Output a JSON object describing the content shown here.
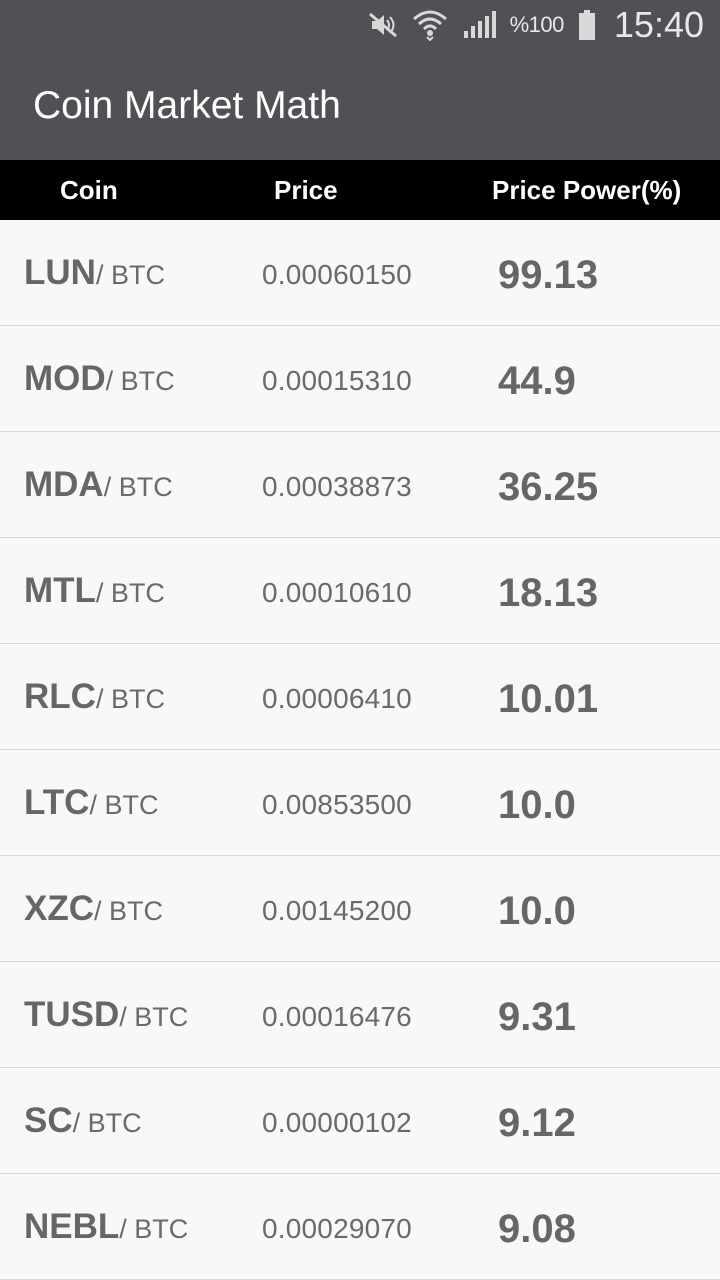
{
  "status_bar": {
    "battery_text": "%100",
    "time": "15:40",
    "icons": [
      "mute-icon",
      "wifi-icon",
      "signal-icon",
      "battery-icon"
    ]
  },
  "app_bar": {
    "title": "Coin Market Math"
  },
  "table": {
    "headers": {
      "coin": "Coin",
      "price": "Price",
      "power": "Price Power(%)"
    },
    "rows": [
      {
        "symbol": "LUN",
        "quote": "/ BTC",
        "price": "0.00060150",
        "power": "99.13"
      },
      {
        "symbol": "MOD",
        "quote": "/ BTC",
        "price": "0.00015310",
        "power": "44.9"
      },
      {
        "symbol": "MDA",
        "quote": "/ BTC",
        "price": "0.00038873",
        "power": "36.25"
      },
      {
        "symbol": "MTL",
        "quote": "/ BTC",
        "price": "0.00010610",
        "power": "18.13"
      },
      {
        "symbol": "RLC",
        "quote": "/ BTC",
        "price": "0.00006410",
        "power": "10.01"
      },
      {
        "symbol": "LTC",
        "quote": "/ BTC",
        "price": "0.00853500",
        "power": "10.0"
      },
      {
        "symbol": "XZC",
        "quote": "/ BTC",
        "price": "0.00145200",
        "power": "10.0"
      },
      {
        "symbol": "TUSD",
        "quote": "/ BTC",
        "price": "0.00016476",
        "power": "9.31"
      },
      {
        "symbol": "SC",
        "quote": "/ BTC",
        "price": "0.00000102",
        "power": "9.12"
      },
      {
        "symbol": "NEBL",
        "quote": "/ BTC",
        "price": "0.00029070",
        "power": "9.08"
      }
    ]
  },
  "colors": {
    "app_bar": "#505154",
    "header_bg": "#000000",
    "row_bg": "#f8f8f8",
    "row_text": "#666666"
  }
}
